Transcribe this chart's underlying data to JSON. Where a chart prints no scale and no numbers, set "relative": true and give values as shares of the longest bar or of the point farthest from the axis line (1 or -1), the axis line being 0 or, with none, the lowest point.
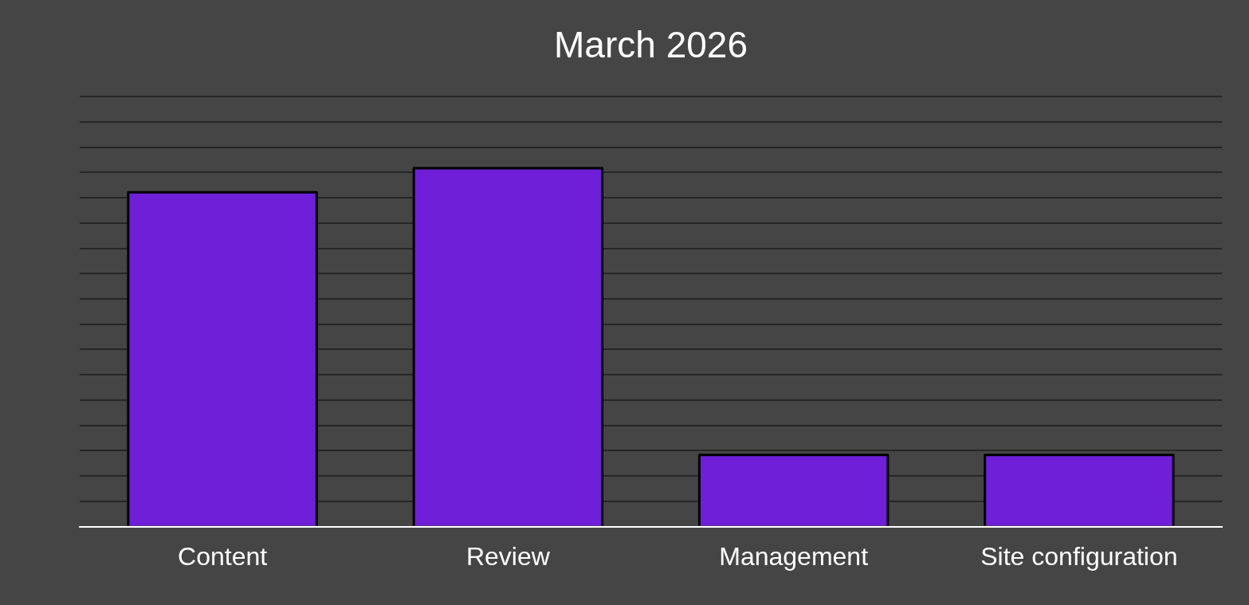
{
  "chart_data": {
    "type": "bar",
    "title": "March 2026",
    "categories": [
      "Content",
      "Review",
      "Management",
      "Site configuration"
    ],
    "values": [
      0.933,
      1,
      0.2,
      0.2
    ],
    "color": "#6f1fd8",
    "relative": true,
    "grid": "y",
    "legend": false
  }
}
